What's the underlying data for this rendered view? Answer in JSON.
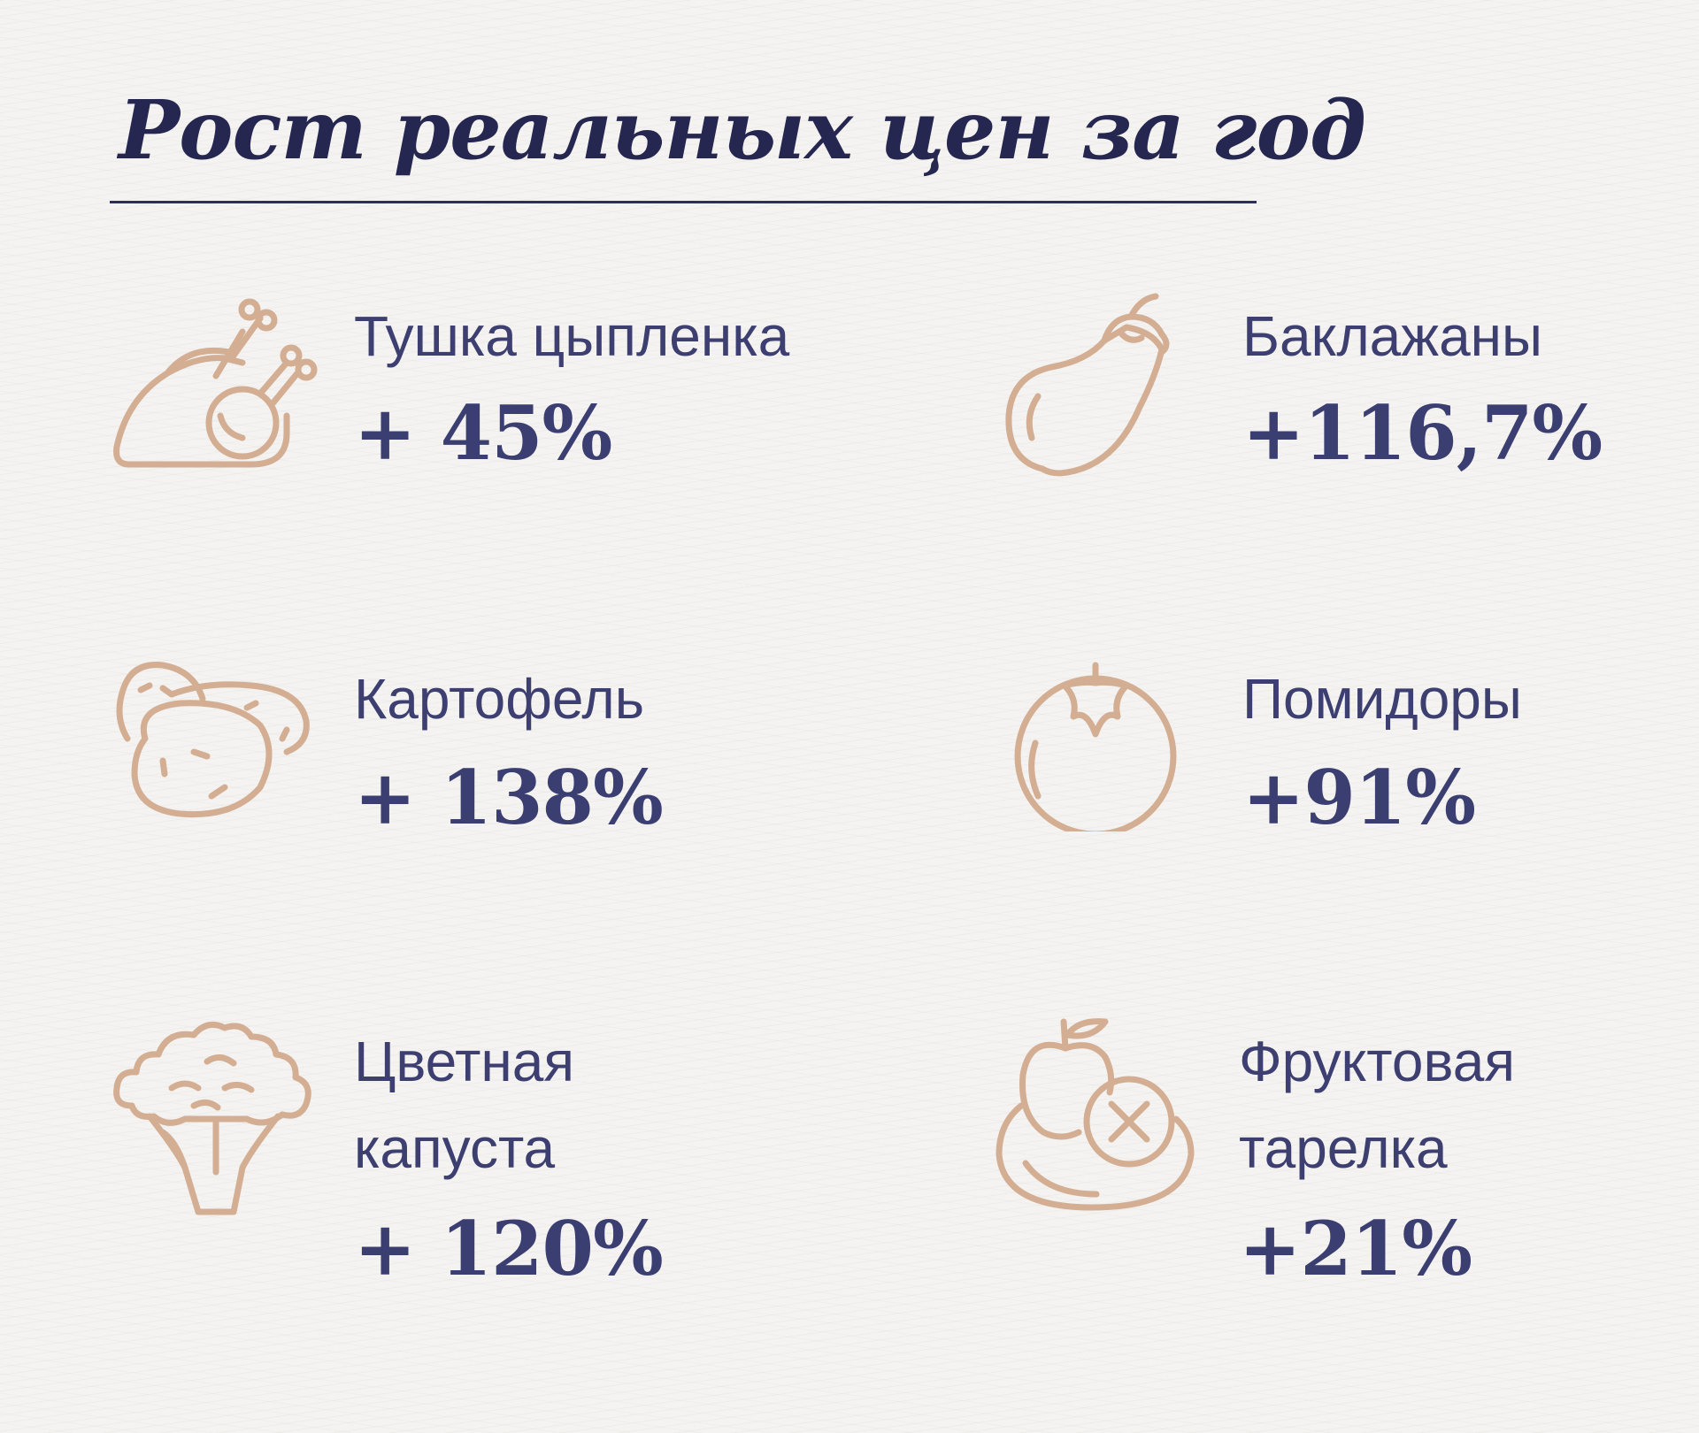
{
  "title": "Рост реальных цен за год",
  "colors": {
    "title": "#252750",
    "text": "#3c3f70",
    "icon": "#d3ae93",
    "background": "#f4f3f1"
  },
  "items": [
    {
      "icon": "chicken-icon",
      "label_lines": [
        "Тушка цыпленка"
      ],
      "value": "+ 45%"
    },
    {
      "icon": "eggplant-icon",
      "label_lines": [
        "Баклажаны"
      ],
      "value": "+116,7%"
    },
    {
      "icon": "potato-icon",
      "label_lines": [
        "Картофель"
      ],
      "value": "+ 138%"
    },
    {
      "icon": "tomato-icon",
      "label_lines": [
        "Помидоры"
      ],
      "value": "+91%"
    },
    {
      "icon": "cauliflower-icon",
      "label_lines": [
        "Цветная",
        "капуста"
      ],
      "value": "+ 120%"
    },
    {
      "icon": "fruit-plate-icon",
      "label_lines": [
        "Фруктовая",
        "тарелка"
      ],
      "value": "+21%"
    }
  ]
}
